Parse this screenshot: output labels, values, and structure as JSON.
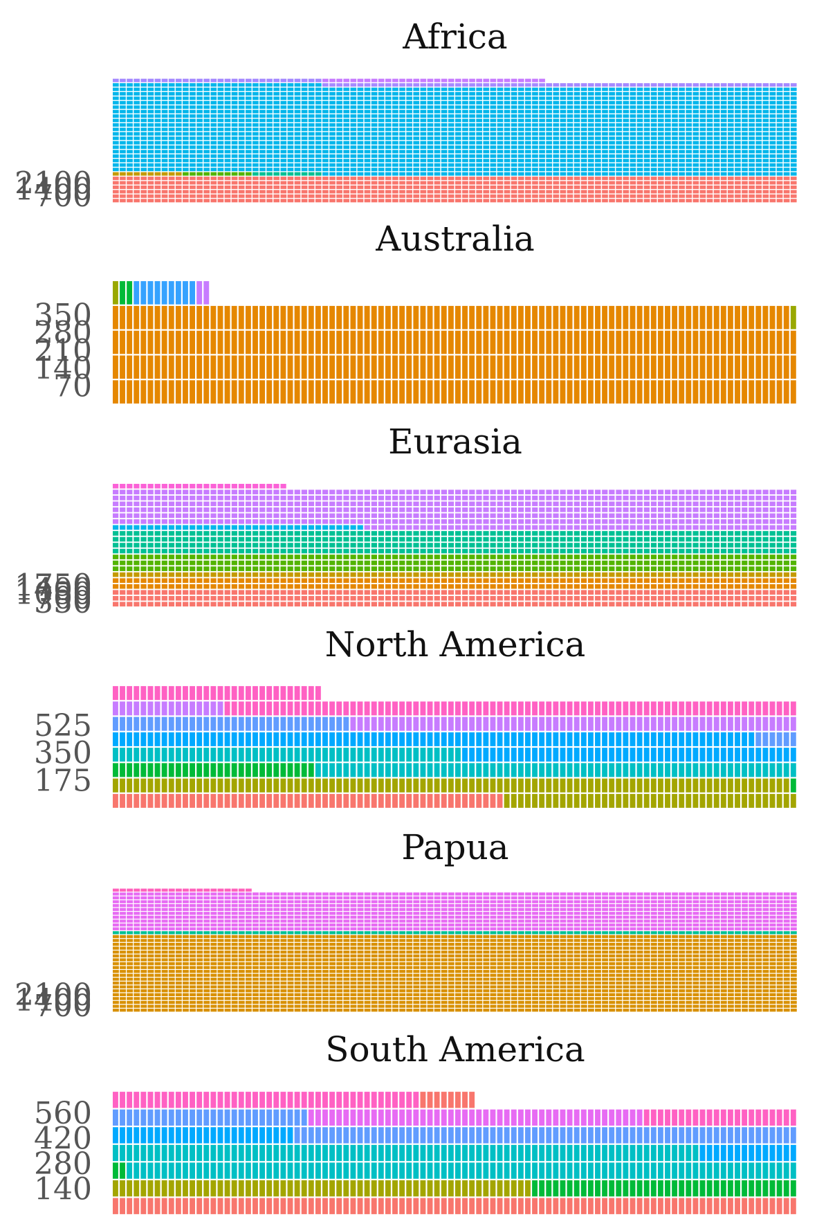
{
  "chart_data": [
    {
      "type": "waffle",
      "title": "Africa",
      "columns": 98,
      "units_per_cell": 5,
      "yticks": [
        700,
        1400,
        2100
      ],
      "fill_order_bottom_to_top": true,
      "segments": [
        {
          "color": "#F8766D",
          "cells": 588
        },
        {
          "color": "#C49A00",
          "cells": 10
        },
        {
          "color": "#53B400",
          "cells": 10
        },
        {
          "color": "#00C094",
          "cells": 10
        },
        {
          "color": "#00B6EB",
          "cells": 1960
        },
        {
          "color": "#A58AFF",
          "cells": 98
        },
        {
          "color": "#FB61D7",
          "cells": 0
        },
        {
          "color": "#C77CFF",
          "cells": 32
        }
      ]
    },
    {
      "type": "waffle",
      "title": "Australia",
      "columns": 98,
      "units_per_cell": 1,
      "yticks": [
        70,
        140,
        210,
        280,
        350
      ],
      "fill_order_bottom_to_top": true,
      "segments": [
        {
          "color": "#E58700",
          "cells": 391
        },
        {
          "color": "#99A800",
          "cells": 2
        },
        {
          "color": "#00BA38",
          "cells": 2
        },
        {
          "color": "#35A2FF",
          "cells": 9
        },
        {
          "color": "#C77CFF",
          "cells": 2
        }
      ]
    },
    {
      "type": "waffle",
      "title": "Eurasia",
      "columns": 98,
      "units_per_cell": 5,
      "yticks": [
        350,
        700,
        1050,
        1400,
        1750
      ],
      "fill_order_bottom_to_top": true,
      "segments": [
        {
          "color": "#F8766D",
          "cells": 294
        },
        {
          "color": "#E58700",
          "cells": 196
        },
        {
          "color": "#C49A00",
          "cells": 98
        },
        {
          "color": "#53B400",
          "cells": 294
        },
        {
          "color": "#00C094",
          "cells": 392
        },
        {
          "color": "#00B6EB",
          "cells": 36
        },
        {
          "color": "#C77CFF",
          "cells": 650
        },
        {
          "color": "#FB61D7",
          "cells": 25
        }
      ]
    },
    {
      "type": "waffle",
      "title": "North America",
      "columns": 98,
      "units_per_cell": 1,
      "yticks": [
        175,
        350,
        525
      ],
      "fill_order_bottom_to_top": true,
      "segments": [
        {
          "color": "#F8766D",
          "cells": 56
        },
        {
          "color": "#A3A500",
          "cells": 139
        },
        {
          "color": "#00BA38",
          "cells": 30
        },
        {
          "color": "#00BFC4",
          "cells": 119
        },
        {
          "color": "#00A9FF",
          "cells": 140
        },
        {
          "color": "#619CFF",
          "cells": 40
        },
        {
          "color": "#C77CFF",
          "cells": 80
        },
        {
          "color": "#FF61C3",
          "cells": 112
        }
      ]
    },
    {
      "type": "waffle",
      "title": "Papua",
      "columns": 98,
      "units_per_cell": 5,
      "yticks": [
        700,
        1400,
        2100
      ],
      "fill_order_bottom_to_top": true,
      "segments": [
        {
          "color": "#D89000",
          "cells": 1960
        },
        {
          "color": "#00C094",
          "cells": 98
        },
        {
          "color": "#E76BF3",
          "cells": 980
        },
        {
          "color": "#FF62BC",
          "cells": 20
        }
      ]
    },
    {
      "type": "waffle",
      "title": "South America",
      "columns": 98,
      "units_per_cell": 1,
      "yticks": [
        140,
        280,
        420,
        560
      ],
      "fill_order_bottom_to_top": true,
      "segments": [
        {
          "color": "#F8766D",
          "cells": 98
        },
        {
          "color": "#A3A500",
          "cells": 60
        },
        {
          "color": "#00BA38",
          "cells": 40
        },
        {
          "color": "#00BFC4",
          "cells": 180
        },
        {
          "color": "#00A9FF",
          "cells": 40
        },
        {
          "color": "#619CFF",
          "cells": 100
        },
        {
          "color": "#E76BF3",
          "cells": 48
        },
        {
          "color": "#FF61C3",
          "cells": 66
        },
        {
          "color": "#F8766D",
          "cells": 8
        }
      ]
    }
  ]
}
